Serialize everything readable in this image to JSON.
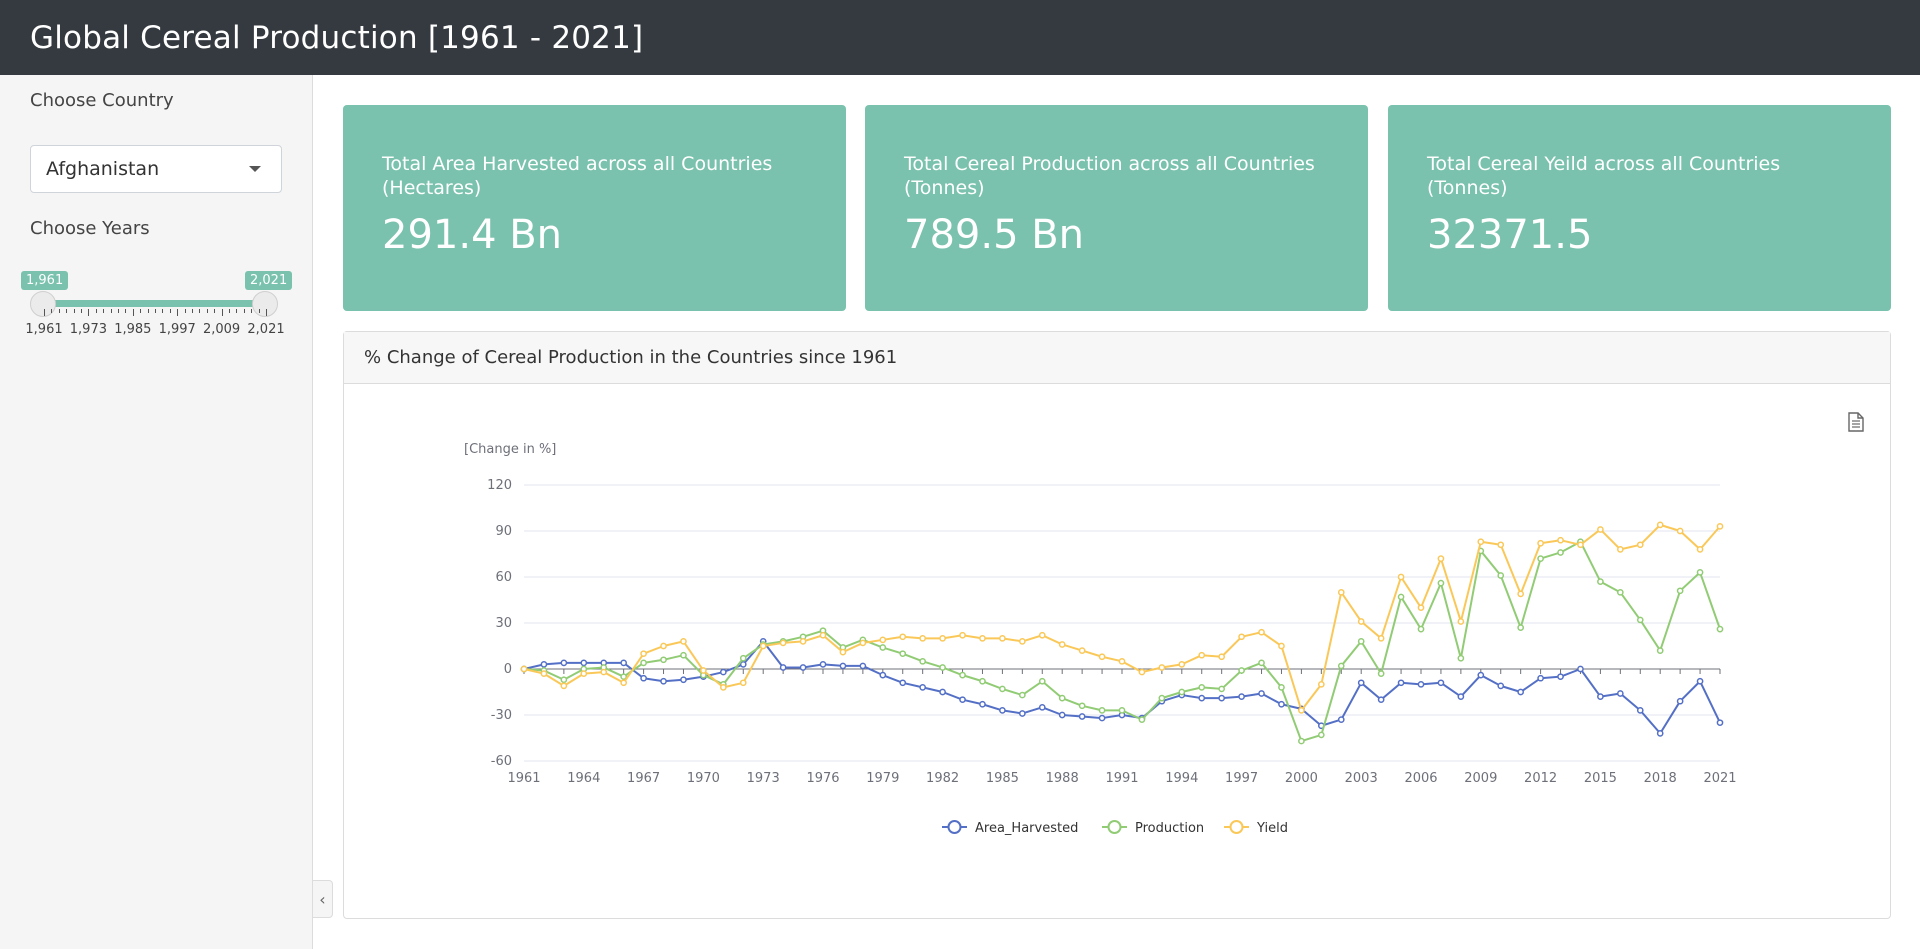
{
  "app": {
    "title": "Global Cereal Production [1961 - 2021]"
  },
  "sidebar": {
    "country_label": "Choose Country",
    "country_value": "Afghanistan",
    "years_label": "Choose Years",
    "slider": {
      "min_badge": "1,961",
      "max_badge": "2,021",
      "from": 1961,
      "to": 2021,
      "tick_labels": [
        "1,961",
        "1,973",
        "1,985",
        "1,997",
        "2,009",
        "2,021"
      ]
    }
  },
  "cards": [
    {
      "title": "Total Area Harvested across all Countries (Hectares)",
      "value": "291.4 Bn"
    },
    {
      "title": "Total Cereal Production across all Countries (Tonnes)",
      "value": "789.5 Bn"
    },
    {
      "title": "Total Cereal Yeild across all Countries (Tonnes)",
      "value": "32371.5"
    }
  ],
  "panel": {
    "title": "% Change of Cereal Production in the Countries since 1961",
    "export_icon": "document-icon"
  },
  "chart_data": {
    "type": "line",
    "ylabel": "[Change in %]",
    "ylim": [
      -60,
      120
    ],
    "yticks": [
      120,
      90,
      60,
      30,
      0,
      -30,
      -60
    ],
    "x": [
      1961,
      1962,
      1963,
      1964,
      1965,
      1966,
      1967,
      1968,
      1969,
      1970,
      1971,
      1972,
      1973,
      1974,
      1975,
      1976,
      1977,
      1978,
      1979,
      1980,
      1981,
      1982,
      1983,
      1984,
      1985,
      1986,
      1987,
      1988,
      1989,
      1990,
      1991,
      1992,
      1993,
      1994,
      1995,
      1996,
      1997,
      1998,
      1999,
      2000,
      2001,
      2002,
      2003,
      2004,
      2005,
      2006,
      2007,
      2008,
      2009,
      2010,
      2011,
      2012,
      2013,
      2014,
      2015,
      2016,
      2017,
      2018,
      2019,
      2020,
      2021
    ],
    "xtick_labels": [
      "1961",
      "1964",
      "1967",
      "1970",
      "1973",
      "1976",
      "1979",
      "1982",
      "1985",
      "1988",
      "1991",
      "1994",
      "1997",
      "2000",
      "2003",
      "2006",
      "2009",
      "2012",
      "2015",
      "2018",
      "2021"
    ],
    "grid": true,
    "legend_position": "bottom-center",
    "series": [
      {
        "name": "Area_Harvested",
        "color": "#5470c6",
        "values": [
          0,
          3,
          4,
          4,
          4,
          4,
          -6,
          -8,
          -7,
          -5,
          -2,
          3,
          18,
          1,
          1,
          3,
          2,
          2,
          -4,
          -9,
          -12,
          -15,
          -20,
          -23,
          -27,
          -29,
          -25,
          -30,
          -31,
          -32,
          -30,
          -32,
          -21,
          -17,
          -19,
          -19,
          -18,
          -16,
          -23,
          -26,
          -37,
          -33,
          -9,
          -20,
          -9,
          -10,
          -9,
          -18,
          -4,
          -11,
          -15,
          -6,
          -5,
          0,
          -18,
          -16,
          -27,
          -42,
          -21,
          -8,
          -35
        ]
      },
      {
        "name": "Production",
        "color": "#91cc75",
        "values": [
          0,
          -1,
          -7,
          0,
          1,
          -5,
          4,
          6,
          9,
          -4,
          -10,
          7,
          16,
          18,
          21,
          25,
          14,
          19,
          14,
          10,
          5,
          1,
          -4,
          -8,
          -13,
          -17,
          -8,
          -19,
          -24,
          -27,
          -27,
          -33,
          -19,
          -15,
          -12,
          -13,
          -1,
          4,
          -12,
          -47,
          -43,
          2,
          18,
          -3,
          47,
          26,
          56,
          7,
          77,
          61,
          27,
          72,
          76,
          83,
          57,
          50,
          32,
          12,
          51,
          63,
          26
        ]
      },
      {
        "name": "Yield",
        "color": "#fac858",
        "values": [
          0,
          -3,
          -11,
          -3,
          -2,
          -9,
          10,
          15,
          18,
          -1,
          -12,
          -9,
          15,
          17,
          18,
          22,
          11,
          17,
          19,
          21,
          20,
          20,
          22,
          20,
          20,
          18,
          22,
          16,
          12,
          8,
          5,
          -2,
          1,
          3,
          9,
          8,
          21,
          24,
          15,
          -27,
          -10,
          50,
          31,
          20,
          60,
          40,
          72,
          31,
          83,
          81,
          49,
          82,
          84,
          81,
          91,
          78,
          81,
          94,
          90,
          78,
          93
        ]
      }
    ]
  }
}
